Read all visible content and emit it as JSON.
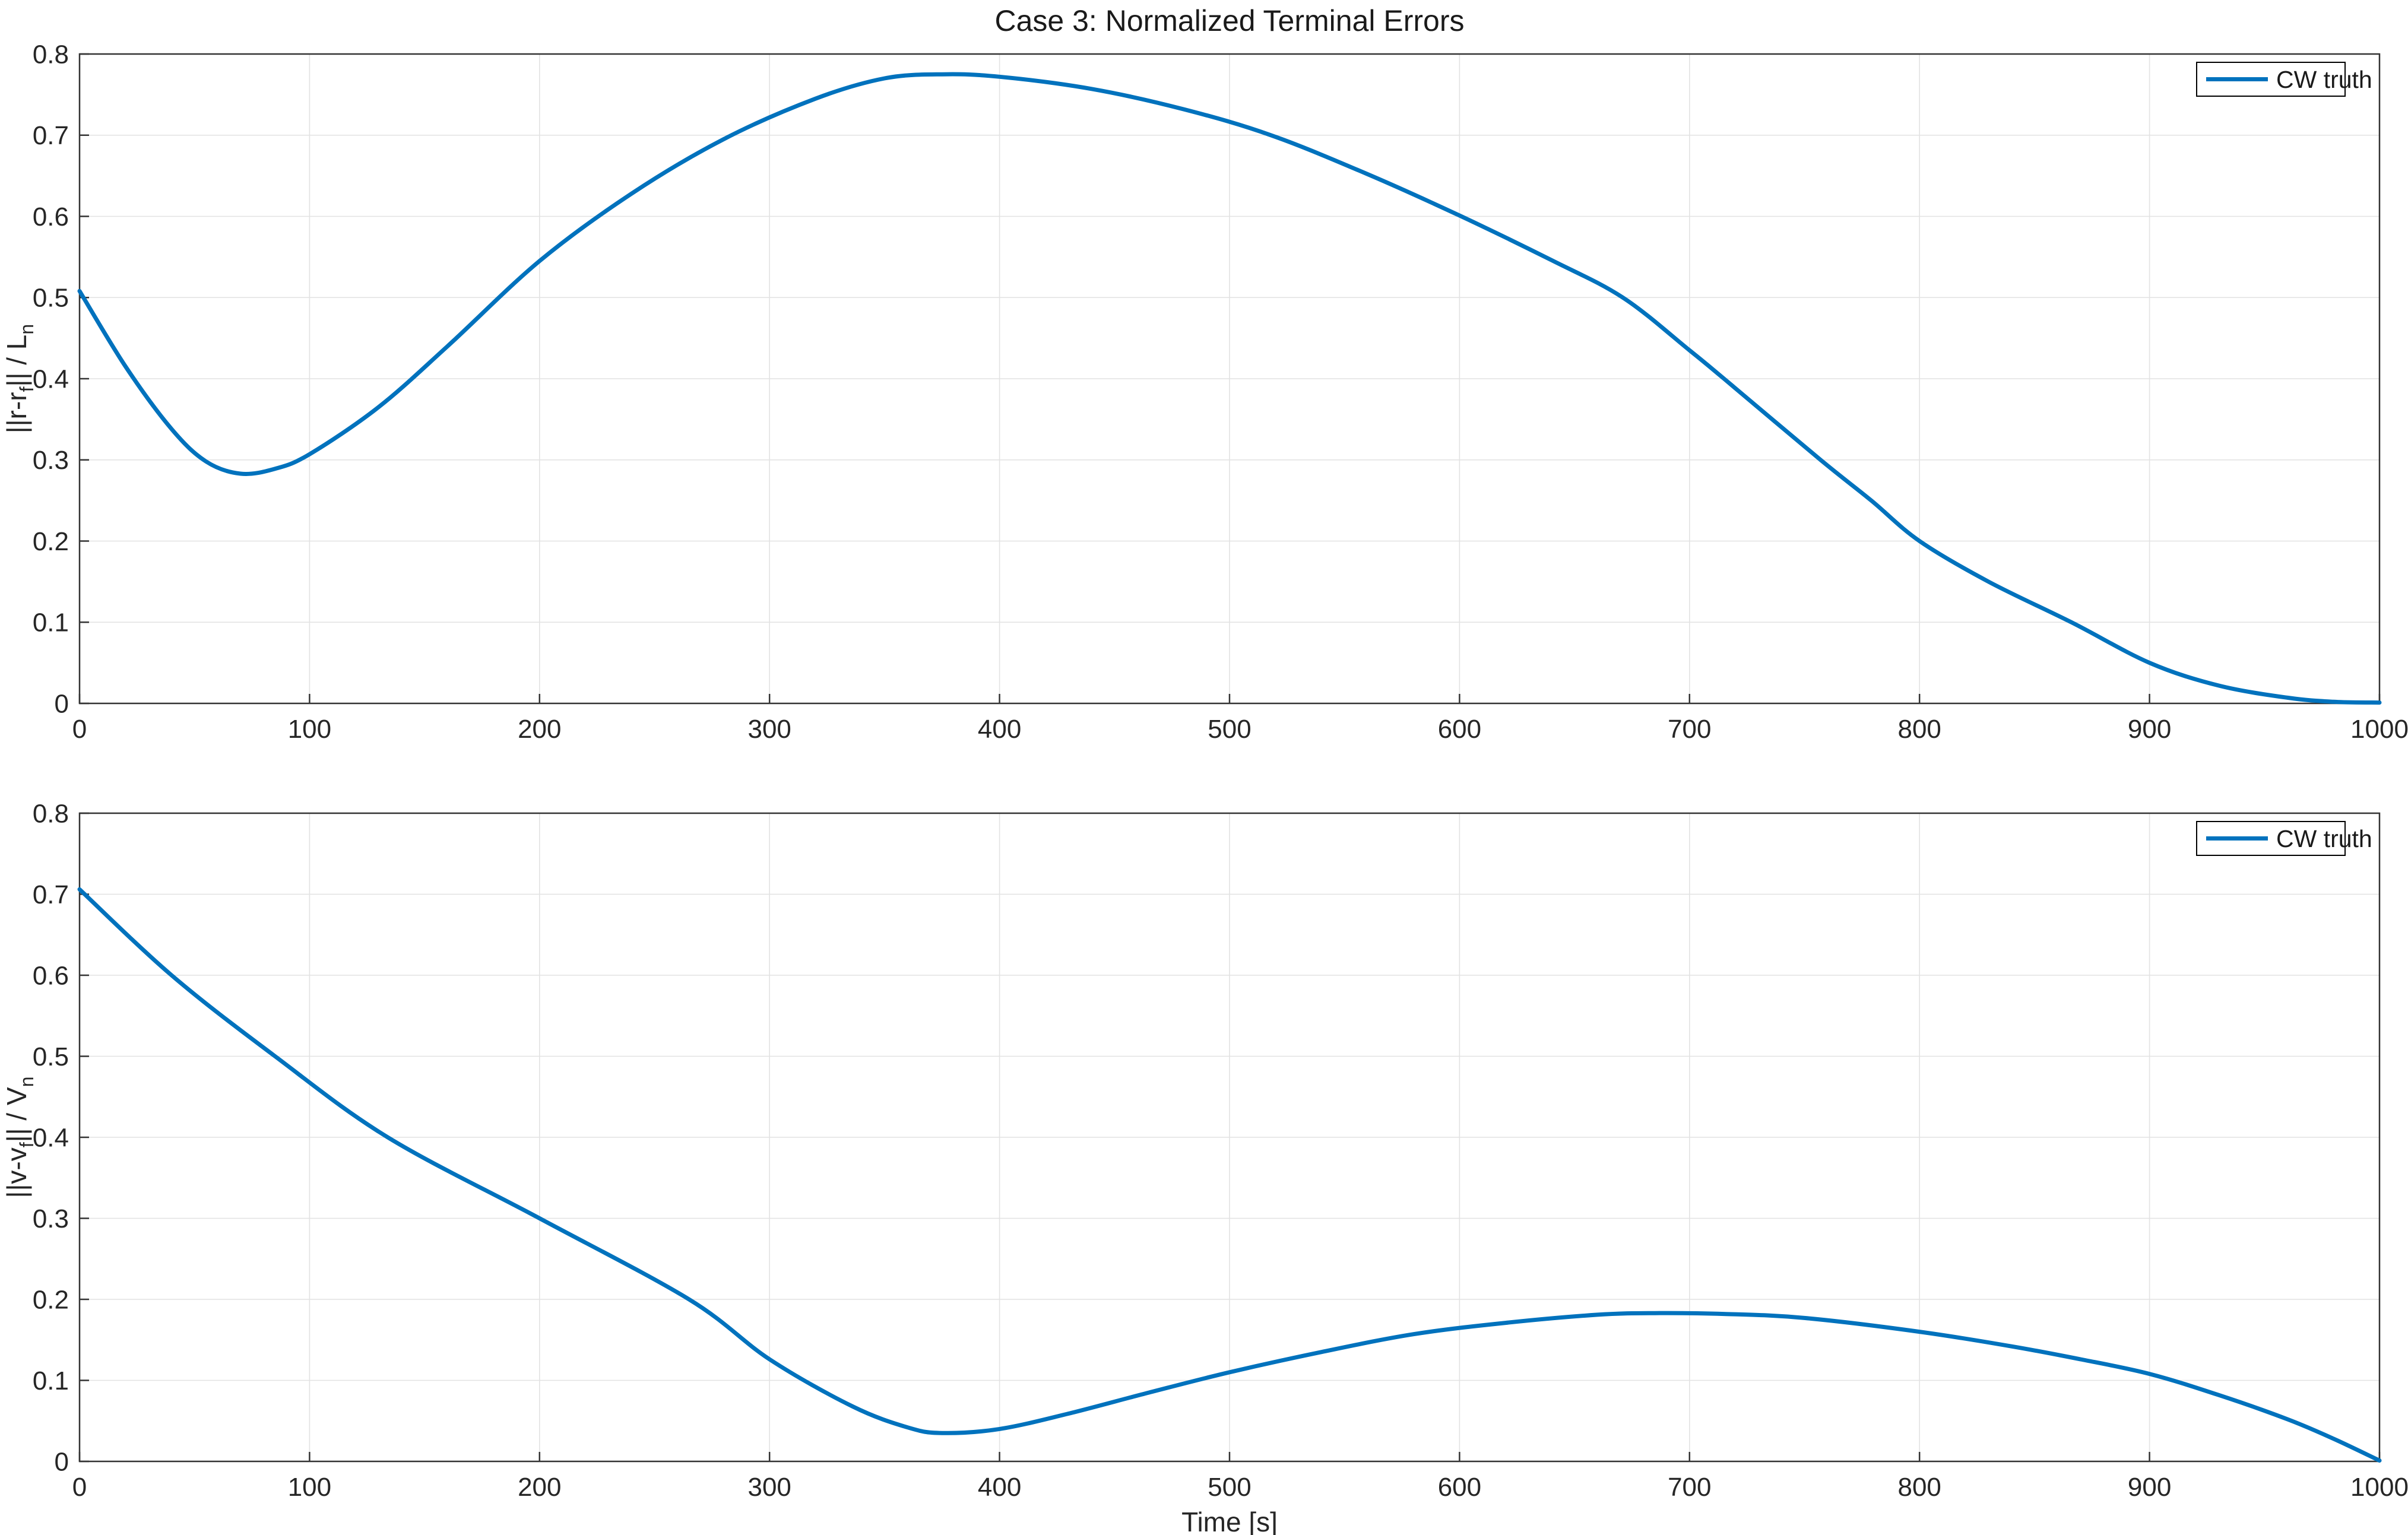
{
  "figure": {
    "background": "#ffffff",
    "title": "Case 3: Normalized Terminal Errors"
  },
  "colors": {
    "line": "#0072BD",
    "grid": "#e2e2e2",
    "axis": "#333333",
    "text": "#262626",
    "title_text": "#1a1a1a",
    "legend_border": "#000000",
    "legend_background": "#ffffff"
  },
  "chart_data": [
    {
      "type": "line",
      "title": "Case 3: Normalized Terminal Errors",
      "xlabel": "",
      "ylabel": "||r-rf|| / Ln",
      "ylabel_segments": [
        {
          "text": "||r-r"
        },
        {
          "text": "f",
          "sub": true
        },
        {
          "text": "||  /  L"
        },
        {
          "text": "n",
          "sub": true
        }
      ],
      "xlim": [
        0,
        1000
      ],
      "ylim": [
        0,
        0.8
      ],
      "xticks": [
        0,
        100,
        200,
        300,
        400,
        500,
        600,
        700,
        800,
        900,
        1000
      ],
      "xtick_labels": [
        "0",
        "100",
        "200",
        "300",
        "400",
        "500",
        "600",
        "700",
        "800",
        "900",
        "1000"
      ],
      "yticks": [
        0,
        0.1,
        0.2,
        0.3,
        0.4,
        0.5,
        0.6,
        0.7,
        0.8
      ],
      "ytick_labels": [
        "0",
        "0.1",
        "0.2",
        "0.3",
        "0.4",
        "0.5",
        "0.6",
        "0.7",
        "0.8"
      ],
      "grid": true,
      "legend": {
        "label": "CW truth",
        "position": "top-right"
      },
      "series": [
        {
          "name": "CW truth",
          "x": [
            0,
            20,
            40,
            55,
            70,
            85,
            100,
            130,
            160,
            200,
            240,
            280,
            320,
            350,
            375,
            400,
            440,
            480,
            518,
            560,
            600,
            640,
            671,
            700,
            715,
            757,
            779,
            800,
            830,
            866,
            900,
            930,
            960,
            980,
            1000
          ],
          "y": [
            0.508,
            0.415,
            0.338,
            0.298,
            0.283,
            0.289,
            0.307,
            0.365,
            0.44,
            0.545,
            0.628,
            0.695,
            0.745,
            0.77,
            0.775,
            0.772,
            0.757,
            0.732,
            0.7,
            0.652,
            0.601,
            0.546,
            0.5,
            0.435,
            0.4,
            0.3,
            0.25,
            0.2,
            0.15,
            0.1,
            0.05,
            0.022,
            0.007,
            0.002,
            0.001
          ]
        }
      ]
    },
    {
      "type": "line",
      "title": "",
      "xlabel": "Time [s]",
      "ylabel": "||v-vf|| / Vn",
      "ylabel_segments": [
        {
          "text": "||v-v"
        },
        {
          "text": "f",
          "sub": true
        },
        {
          "text": "||  /  V"
        },
        {
          "text": "n",
          "sub": true
        }
      ],
      "xlim": [
        0,
        1000
      ],
      "ylim": [
        0,
        0.8
      ],
      "xticks": [
        0,
        100,
        200,
        300,
        400,
        500,
        600,
        700,
        800,
        900,
        1000
      ],
      "xtick_labels": [
        "0",
        "100",
        "200",
        "300",
        "400",
        "500",
        "600",
        "700",
        "800",
        "900",
        "1000"
      ],
      "yticks": [
        0,
        0.1,
        0.2,
        0.3,
        0.4,
        0.5,
        0.6,
        0.7,
        0.8
      ],
      "ytick_labels": [
        "0",
        "0.1",
        "0.2",
        "0.3",
        "0.4",
        "0.5",
        "0.6",
        "0.7",
        "0.8"
      ],
      "grid": true,
      "legend": {
        "label": "CW truth",
        "position": "top-right"
      },
      "series": [
        {
          "name": "CW truth",
          "x": [
            0,
            40,
            85,
            134,
            200,
            265,
            300,
            336,
            360,
            375,
            400,
            430,
            465,
            500,
            540,
            580,
            620,
            660,
            685,
            715,
            750,
            800,
            840,
            870,
            900,
            930,
            960,
            980,
            1000
          ],
          "y": [
            0.706,
            0.6,
            0.5,
            0.4,
            0.3,
            0.2,
            0.126,
            0.068,
            0.042,
            0.035,
            0.04,
            0.059,
            0.085,
            0.11,
            0.135,
            0.157,
            0.171,
            0.181,
            0.183,
            0.182,
            0.177,
            0.16,
            0.142,
            0.126,
            0.108,
            0.082,
            0.052,
            0.028,
            0.001
          ]
        }
      ]
    }
  ]
}
